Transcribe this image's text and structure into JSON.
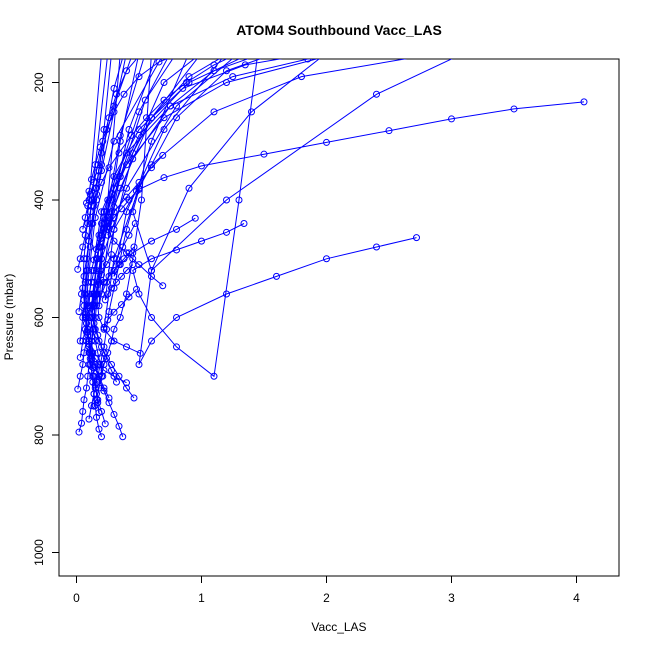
{
  "chart_data": {
    "type": "line",
    "title": "ATOM4 Southbound Vacc_LAS",
    "xlabel": "Vacc_LAS",
    "ylabel": "Pressure (mbar)",
    "xlim": [
      -0.14,
      4.34
    ],
    "ylim": [
      1040,
      160
    ],
    "y_axis_inverted": true,
    "x_ticks": [
      "0",
      "1",
      "2",
      "3",
      "4"
    ],
    "x_tick_values": [
      0,
      1,
      2,
      3,
      4
    ],
    "y_ticks": [
      "200",
      "400",
      "600",
      "800",
      "1000"
    ],
    "y_tick_values": [
      200,
      400,
      600,
      800,
      1000
    ],
    "grid": false,
    "line_color": "#0000ff",
    "marker": "open-circle",
    "series": [
      {
        "x": [
          0.02,
          0.04,
          0.05,
          0.06,
          0.08,
          0.09,
          0.1,
          0.11,
          0.12,
          0.14,
          0.15,
          0.16,
          0.17,
          0.18,
          0.19,
          0.2,
          0.19,
          0.18,
          0.2,
          0.22
        ],
        "y": [
          795,
          780,
          760,
          740,
          720,
          700,
          680,
          660,
          640,
          620,
          600,
          580,
          560,
          540,
          520,
          500,
          480,
          460,
          440,
          420
        ]
      },
      {
        "x": [
          0.01,
          0.03,
          0.05,
          0.06,
          0.08,
          0.09,
          0.1,
          0.12,
          0.13,
          0.14,
          0.16,
          0.17,
          0.18,
          0.2,
          0.22,
          0.25,
          0.35
        ],
        "y": [
          722,
          700,
          680,
          660,
          640,
          620,
          600,
          580,
          560,
          540,
          520,
          500,
          480,
          460,
          440,
          400,
          150
        ]
      },
      {
        "x": [
          0.03,
          0.05,
          0.07,
          0.08,
          0.09,
          0.1,
          0.12,
          0.14,
          0.16,
          0.18,
          0.2,
          0.22,
          0.24,
          0.28,
          0.35,
          0.5
        ],
        "y": [
          668,
          640,
          620,
          600,
          580,
          560,
          540,
          520,
          500,
          480,
          460,
          440,
          420,
          400,
          300,
          150
        ]
      },
      {
        "x": [
          0.14,
          0.16,
          0.18,
          0.2,
          0.22,
          0.25,
          0.28,
          0.3,
          0.35,
          0.4,
          0.45,
          0.52,
          0.6
        ],
        "y": [
          751,
          740,
          720,
          700,
          680,
          660,
          640,
          620,
          600,
          560,
          500,
          400,
          150
        ]
      },
      {
        "x": [
          0.2,
          0.18,
          0.16,
          0.15,
          0.14,
          0.13,
          0.12,
          0.11,
          0.1,
          0.09,
          0.08,
          0.07,
          0.06,
          0.05,
          0.06,
          0.1,
          0.2
        ],
        "y": [
          803,
          790,
          770,
          750,
          730,
          710,
          690,
          670,
          650,
          630,
          610,
          590,
          570,
          550,
          500,
          400,
          150
        ]
      },
      {
        "x": [
          0.18,
          0.17,
          0.16,
          0.15,
          0.14,
          0.13,
          0.12,
          0.11,
          0.1,
          0.09,
          0.08,
          0.07,
          0.06,
          0.07,
          0.1,
          0.2,
          0.4
        ],
        "y": [
          762,
          745,
          730,
          715,
          700,
          685,
          670,
          655,
          640,
          625,
          610,
          595,
          580,
          540,
          470,
          350,
          150
        ]
      },
      {
        "x": [
          0.1,
          0.12,
          0.14,
          0.16,
          0.18,
          0.2,
          0.22,
          0.24,
          0.26,
          0.3,
          0.4,
          0.6,
          0.9
        ],
        "y": [
          773,
          750,
          730,
          710,
          690,
          670,
          650,
          620,
          590,
          550,
          450,
          300,
          150
        ]
      },
      {
        "x": [
          0.37,
          0.34,
          0.3,
          0.26,
          0.22,
          0.18,
          0.15,
          0.12,
          0.1,
          0.08,
          0.07,
          0.08,
          0.12,
          0.25
        ],
        "y": [
          803,
          785,
          765,
          745,
          725,
          705,
          685,
          665,
          645,
          625,
          600,
          520,
          400,
          150
        ]
      },
      {
        "x": [
          0.4,
          0.3,
          0.22,
          0.18,
          0.15,
          0.12,
          0.1,
          0.09,
          0.08,
          0.09,
          0.15,
          0.3,
          0.7
        ],
        "y": [
          711,
          700,
          690,
          680,
          670,
          660,
          640,
          620,
          600,
          540,
          430,
          300,
          150
        ]
      },
      {
        "x": [
          0.46,
          0.4,
          0.34,
          0.28,
          0.22,
          0.18,
          0.15,
          0.14,
          0.2,
          0.4,
          0.8,
          1.3
        ],
        "y": [
          737,
          720,
          700,
          680,
          660,
          640,
          620,
          580,
          500,
          380,
          240,
          150
        ]
      },
      {
        "x": [
          0.51,
          0.4,
          0.3,
          0.22,
          0.18,
          0.16,
          0.2,
          0.35,
          0.6,
          1.0
        ],
        "y": [
          661,
          650,
          640,
          620,
          600,
          560,
          480,
          380,
          260,
          150
        ]
      },
      {
        "x": [
          0.69,
          0.6,
          0.5,
          0.4,
          0.3,
          0.25,
          0.22,
          0.3,
          0.5,
          0.9,
          1.4
        ],
        "y": [
          546,
          530,
          510,
          490,
          470,
          450,
          420,
          360,
          280,
          200,
          150
        ]
      },
      {
        "x": [
          0.95,
          0.8,
          0.6,
          0.45,
          0.35,
          0.3,
          0.4,
          0.7,
          1.2
        ],
        "y": [
          431,
          450,
          470,
          490,
          510,
          530,
          420,
          280,
          150
        ]
      },
      {
        "x": [
          1.34,
          1.2,
          1.0,
          0.8,
          0.6,
          0.45,
          0.5,
          0.6,
          0.8,
          1.1,
          1.3,
          1.45
        ],
        "y": [
          440,
          455,
          470,
          485,
          500,
          520,
          560,
          600,
          650,
          700,
          400,
          150
        ]
      },
      {
        "x": [
          2.72,
          2.4,
          2.0,
          1.6,
          1.2,
          0.8,
          0.6,
          0.5,
          0.6,
          0.9,
          1.4,
          2.0
        ],
        "y": [
          464,
          480,
          500,
          530,
          560,
          600,
          640,
          680,
          520,
          380,
          250,
          150
        ]
      },
      {
        "x": [
          4.06,
          3.5,
          3.0,
          2.5,
          2.0,
          1.5,
          1.0,
          0.7,
          0.5,
          0.45,
          0.6,
          1.2,
          2.4,
          3.1
        ],
        "y": [
          233,
          245,
          262,
          282,
          302,
          322,
          342,
          362,
          382,
          420,
          520,
          400,
          220,
          150
        ]
      },
      {
        "x": [
          0.69,
          0.6,
          0.5,
          0.4,
          0.3,
          0.28,
          0.25,
          0.35,
          0.55,
          0.8
        ],
        "y": [
          324,
          345,
          370,
          395,
          420,
          440,
          460,
          360,
          230,
          150
        ]
      },
      {
        "x": [
          0.48,
          0.42,
          0.36,
          0.3,
          0.25,
          0.2,
          0.18,
          0.3,
          0.5,
          0.75
        ],
        "y": [
          385,
          400,
          415,
          430,
          445,
          460,
          480,
          380,
          250,
          150
        ]
      },
      {
        "x": [
          0.47,
          0.42,
          0.37,
          0.32,
          0.28,
          0.24,
          0.2,
          0.18,
          0.22,
          0.35,
          0.55
        ],
        "y": [
          440,
          460,
          480,
          500,
          520,
          540,
          560,
          580,
          450,
          290,
          150
        ]
      },
      {
        "x": [
          0.46,
          0.42,
          0.38,
          0.34,
          0.3,
          0.26,
          0.22,
          0.2,
          0.28,
          0.42,
          0.65
        ],
        "y": [
          480,
          490,
          500,
          510,
          520,
          530,
          540,
          560,
          420,
          280,
          150
        ]
      },
      {
        "x": [
          0.45,
          0.4,
          0.36,
          0.32,
          0.28,
          0.25,
          0.23,
          0.3,
          0.45,
          0.7,
          1.0
        ],
        "y": [
          510,
          520,
          530,
          540,
          550,
          560,
          570,
          450,
          320,
          200,
          150
        ]
      },
      {
        "x": [
          0.48,
          0.42,
          0.36,
          0.3,
          0.25,
          0.22,
          0.3,
          0.5,
          0.8,
          1.2,
          1.6
        ],
        "y": [
          552,
          565,
          578,
          591,
          604,
          617,
          500,
          380,
          260,
          180,
          150
        ]
      },
      {
        "x": [
          0.01,
          0.03,
          0.05,
          0.07,
          0.09,
          0.11,
          0.13,
          0.15,
          0.17,
          0.2,
          0.3,
          0.45
        ],
        "y": [
          518,
          500,
          480,
          460,
          440,
          420,
          400,
          380,
          360,
          320,
          240,
          150
        ]
      },
      {
        "x": [
          0.02,
          0.04,
          0.06,
          0.08,
          0.1,
          0.12,
          0.14,
          0.16,
          0.18,
          0.22,
          0.28
        ],
        "y": [
          590,
          560,
          530,
          500,
          470,
          440,
          410,
          380,
          350,
          280,
          150
        ]
      },
      {
        "x": [
          0.03,
          0.05,
          0.07,
          0.09,
          0.11,
          0.13,
          0.16,
          0.2,
          0.24,
          0.3,
          0.38
        ],
        "y": [
          640,
          600,
          560,
          520,
          480,
          440,
          400,
          340,
          280,
          210,
          150
        ]
      },
      {
        "x": [
          0.05,
          0.07,
          0.09,
          0.11,
          0.14,
          0.17,
          0.21,
          0.26,
          0.32,
          0.4,
          0.52
        ],
        "y": [
          450,
          430,
          410,
          390,
          370,
          340,
          300,
          260,
          220,
          180,
          150
        ]
      },
      {
        "x": [
          0.08,
          0.1,
          0.12,
          0.15,
          0.19,
          0.24,
          0.3,
          0.38,
          0.5,
          0.66,
          0.84
        ],
        "y": [
          405,
          385,
          365,
          340,
          310,
          280,
          250,
          220,
          190,
          165,
          150
        ]
      },
      {
        "x": [
          0.12,
          0.16,
          0.2,
          0.26,
          0.34,
          0.44,
          0.56,
          0.7,
          0.88,
          1.1,
          1.3
        ],
        "y": [
          410,
          390,
          370,
          345,
          320,
          290,
          260,
          230,
          200,
          170,
          150
        ]
      },
      {
        "x": [
          0.32,
          0.28,
          0.24,
          0.2,
          0.17,
          0.14,
          0.12,
          0.18,
          0.35,
          0.6,
          0.9,
          1.22
        ],
        "y": [
          710,
          690,
          670,
          650,
          630,
          610,
          590,
          480,
          360,
          260,
          190,
          150
        ]
      },
      {
        "x": [
          0.23,
          0.2,
          0.17,
          0.15,
          0.13,
          0.11,
          0.1,
          0.14,
          0.25,
          0.45,
          0.75,
          1.1,
          1.5
        ],
        "y": [
          781,
          760,
          740,
          720,
          700,
          680,
          660,
          560,
          440,
          330,
          240,
          180,
          150
        ]
      },
      {
        "x": [
          0.28,
          0.24,
          0.2,
          0.17,
          0.15,
          0.13,
          0.12,
          0.16,
          0.28,
          0.5,
          0.85,
          1.35,
          1.9
        ],
        "y": [
          493,
          510,
          527,
          544,
          561,
          578,
          600,
          500,
          390,
          290,
          210,
          170,
          150
        ]
      },
      {
        "x": [
          0.3,
          0.26,
          0.22,
          0.19,
          0.16,
          0.14,
          0.2,
          0.4,
          0.75,
          1.25,
          1.85,
          2.5
        ],
        "y": [
          412,
          430,
          448,
          466,
          484,
          502,
          420,
          320,
          240,
          190,
          160,
          150
        ]
      },
      {
        "x": [
          0.21,
          0.19,
          0.17,
          0.15,
          0.13,
          0.11,
          0.1,
          0.12,
          0.22,
          0.4,
          0.7,
          1.2,
          2.1
        ],
        "y": [
          700,
          680,
          660,
          640,
          620,
          600,
          580,
          520,
          430,
          340,
          260,
          200,
          150
        ]
      },
      {
        "x": [
          0.26,
          0.22,
          0.18,
          0.15,
          0.13,
          0.12,
          0.16,
          0.3,
          0.6,
          1.1,
          1.8,
          2.9
        ],
        "y": [
          737,
          720,
          700,
          680,
          660,
          640,
          560,
          450,
          340,
          250,
          190,
          150
        ]
      }
    ]
  }
}
